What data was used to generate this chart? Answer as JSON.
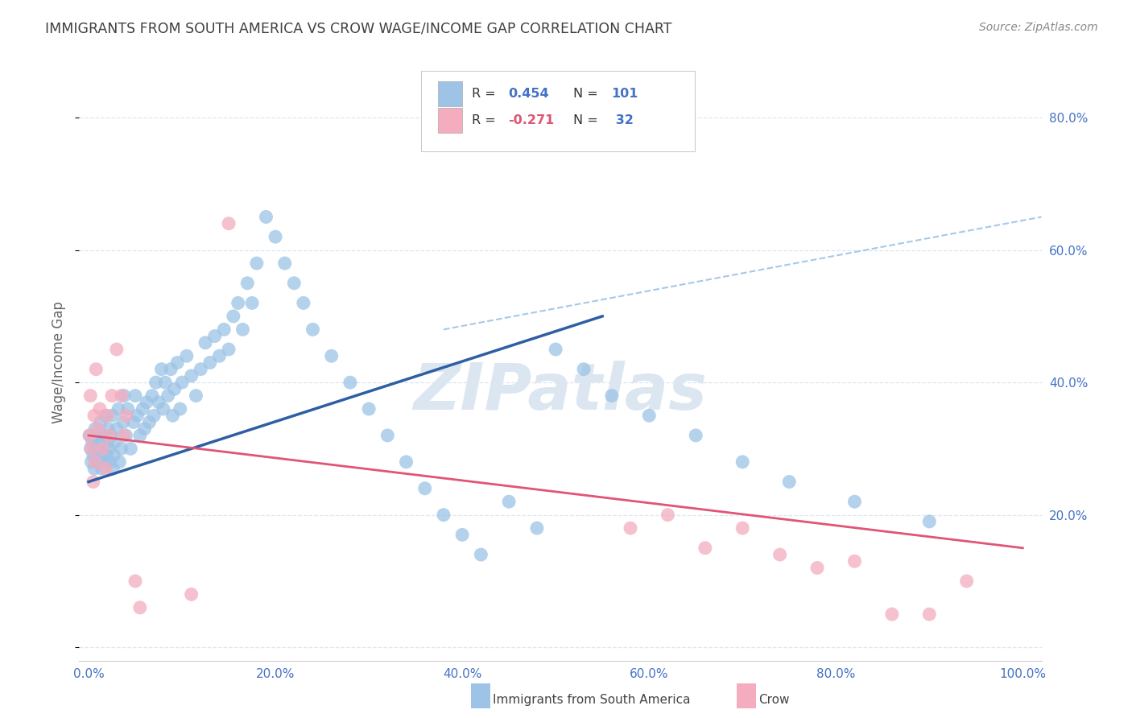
{
  "title": "IMMIGRANTS FROM SOUTH AMERICA VS CROW WAGE/INCOME GAP CORRELATION CHART",
  "source": "Source: ZipAtlas.com",
  "ylabel": "Wage/Income Gap",
  "y_tick_values": [
    0.0,
    0.2,
    0.4,
    0.6,
    0.8
  ],
  "y_tick_labels": [
    "",
    "20.0%",
    "40.0%",
    "60.0%",
    "80.0%"
  ],
  "x_tick_values": [
    0.0,
    0.2,
    0.4,
    0.6,
    0.8,
    1.0
  ],
  "x_tick_labels": [
    "0.0%",
    "20.0%",
    "40.0%",
    "60.0%",
    "80.0%",
    "100.0%"
  ],
  "blue_color": "#9dc3e6",
  "pink_color": "#f4acbe",
  "blue_line_color": "#2e5fa3",
  "pink_line_color": "#e05575",
  "dashed_line_color": "#9dc3e6",
  "axis_label_color": "#4472c4",
  "grid_color": "#dce6f1",
  "title_color": "#404040",
  "background_color": "#ffffff",
  "watermark": "ZIPatlas",
  "watermark_color": "#dce6f1",
  "blue_scatter_x": [
    0.001,
    0.002,
    0.003,
    0.004,
    0.005,
    0.006,
    0.007,
    0.008,
    0.009,
    0.01,
    0.011,
    0.012,
    0.013,
    0.014,
    0.015,
    0.016,
    0.017,
    0.018,
    0.019,
    0.02,
    0.021,
    0.022,
    0.023,
    0.024,
    0.025,
    0.026,
    0.027,
    0.028,
    0.03,
    0.032,
    0.033,
    0.035,
    0.037,
    0.038,
    0.04,
    0.042,
    0.045,
    0.048,
    0.05,
    0.052,
    0.055,
    0.058,
    0.06,
    0.062,
    0.065,
    0.068,
    0.07,
    0.072,
    0.075,
    0.078,
    0.08,
    0.082,
    0.085,
    0.088,
    0.09,
    0.092,
    0.095,
    0.098,
    0.1,
    0.105,
    0.11,
    0.115,
    0.12,
    0.125,
    0.13,
    0.135,
    0.14,
    0.145,
    0.15,
    0.155,
    0.16,
    0.165,
    0.17,
    0.175,
    0.18,
    0.19,
    0.2,
    0.21,
    0.22,
    0.23,
    0.24,
    0.26,
    0.28,
    0.3,
    0.32,
    0.34,
    0.36,
    0.38,
    0.4,
    0.42,
    0.45,
    0.48,
    0.5,
    0.53,
    0.56,
    0.6,
    0.65,
    0.7,
    0.75,
    0.82,
    0.9
  ],
  "blue_scatter_y": [
    0.32,
    0.3,
    0.28,
    0.31,
    0.29,
    0.27,
    0.33,
    0.3,
    0.28,
    0.32,
    0.31,
    0.29,
    0.34,
    0.27,
    0.3,
    0.32,
    0.28,
    0.35,
    0.29,
    0.31,
    0.33,
    0.3,
    0.28,
    0.32,
    0.35,
    0.27,
    0.29,
    0.31,
    0.33,
    0.36,
    0.28,
    0.3,
    0.34,
    0.38,
    0.32,
    0.36,
    0.3,
    0.34,
    0.38,
    0.35,
    0.32,
    0.36,
    0.33,
    0.37,
    0.34,
    0.38,
    0.35,
    0.4,
    0.37,
    0.42,
    0.36,
    0.4,
    0.38,
    0.42,
    0.35,
    0.39,
    0.43,
    0.36,
    0.4,
    0.44,
    0.41,
    0.38,
    0.42,
    0.46,
    0.43,
    0.47,
    0.44,
    0.48,
    0.45,
    0.5,
    0.52,
    0.48,
    0.55,
    0.52,
    0.58,
    0.65,
    0.62,
    0.58,
    0.55,
    0.52,
    0.48,
    0.44,
    0.4,
    0.36,
    0.32,
    0.28,
    0.24,
    0.2,
    0.17,
    0.14,
    0.22,
    0.18,
    0.45,
    0.42,
    0.38,
    0.35,
    0.32,
    0.28,
    0.25,
    0.22,
    0.19
  ],
  "pink_scatter_x": [
    0.001,
    0.002,
    0.003,
    0.005,
    0.006,
    0.007,
    0.008,
    0.01,
    0.012,
    0.015,
    0.018,
    0.02,
    0.022,
    0.025,
    0.03,
    0.035,
    0.038,
    0.04,
    0.05,
    0.055,
    0.11,
    0.15,
    0.58,
    0.62,
    0.66,
    0.7,
    0.74,
    0.78,
    0.82,
    0.86,
    0.9,
    0.94
  ],
  "pink_scatter_y": [
    0.32,
    0.38,
    0.3,
    0.25,
    0.35,
    0.28,
    0.42,
    0.33,
    0.36,
    0.3,
    0.27,
    0.35,
    0.32,
    0.38,
    0.45,
    0.38,
    0.32,
    0.35,
    0.1,
    0.06,
    0.08,
    0.64,
    0.18,
    0.2,
    0.15,
    0.18,
    0.14,
    0.12,
    0.13,
    0.05,
    0.05,
    0.1
  ]
}
